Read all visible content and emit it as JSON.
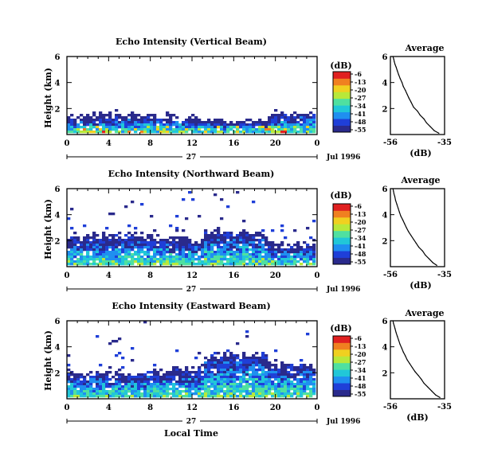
{
  "figure": {
    "x_axis_title": "Local Time",
    "date_label": "Jul 1996",
    "day_label": "27"
  },
  "colorbar": {
    "unit": "(dB)",
    "ticks": [
      "-6",
      "-13",
      "-20",
      "-27",
      "-34",
      "-41",
      "-48",
      "-55"
    ],
    "colors": [
      "#2a2a8c",
      "#1f3fd8",
      "#1f8ff0",
      "#21c7d8",
      "#4fe0a0",
      "#b8e83a",
      "#f0d020",
      "#f08020",
      "#e02020"
    ]
  },
  "chart_data": [
    {
      "type": "heatmap",
      "title": "Echo Intensity (Vertical Beam)",
      "xlabel": "",
      "ylabel": "Height (km)",
      "xlim": [
        0,
        24
      ],
      "ylim": [
        0,
        6
      ],
      "xticks": [
        "0",
        "4",
        "8",
        "12",
        "16",
        "20",
        "0"
      ],
      "yticks": [
        "2",
        "4",
        "6"
      ],
      "profile": {
        "i_hi": 20,
        "shift": 1.0,
        "sparse": 0.0,
        "seed": 7
      }
    },
    {
      "type": "line",
      "title": "Average",
      "xlabel": "(dB)",
      "ylabel": "",
      "xlim": [
        -56,
        -35
      ],
      "ylim": [
        0,
        6
      ],
      "xticks": [
        "-56",
        "-35"
      ],
      "yticks": [
        "2",
        "4",
        "6"
      ],
      "x": [
        -37.2,
        -39,
        -40.5,
        -42,
        -43,
        -44.5,
        -45.5,
        -47,
        -48,
        -48.8,
        -49.5,
        -50.2,
        -51,
        -51.5,
        -52.2,
        -52.8,
        -53.3,
        -53.8,
        -54.2,
        -54.5,
        -54.7,
        -55
      ],
      "y": [
        0.1,
        0.3,
        0.6,
        0.9,
        1.2,
        1.5,
        1.8,
        2.1,
        2.5,
        2.8,
        3.1,
        3.4,
        3.7,
        4.0,
        4.3,
        4.6,
        4.9,
        5.2,
        5.4,
        5.6,
        5.8,
        6.0
      ]
    },
    {
      "type": "heatmap",
      "title": "Echo Intensity (Northward Beam)",
      "xlabel": "",
      "ylabel": "Height (km)",
      "xlim": [
        0,
        24
      ],
      "ylim": [
        0,
        6
      ],
      "xticks": [
        "0",
        "4",
        "8",
        "12",
        "16",
        "20",
        "0"
      ],
      "yticks": [
        "2",
        "4",
        "6"
      ],
      "profile": {
        "i_hi": 14,
        "shift": 1.6,
        "sparse": 0.015,
        "seed": 13
      }
    },
    {
      "type": "line",
      "title": "Average",
      "xlabel": "(dB)",
      "ylabel": "",
      "xlim": [
        -56,
        -35
      ],
      "ylim": [
        0,
        6
      ],
      "xticks": [
        "-56",
        "-35"
      ],
      "yticks": [
        "2",
        "4",
        "6"
      ],
      "x": [
        -38,
        -39.5,
        -41,
        -42.5,
        -43.5,
        -45,
        -46,
        -47,
        -48,
        -49,
        -49.8,
        -50.5,
        -51.2,
        -52,
        -52.5,
        -53,
        -53.5,
        -54,
        -54.3,
        -54.6,
        -54.8,
        -55
      ],
      "y": [
        0.1,
        0.3,
        0.6,
        0.9,
        1.2,
        1.5,
        1.8,
        2.1,
        2.4,
        2.7,
        3.0,
        3.3,
        3.6,
        3.9,
        4.2,
        4.5,
        4.8,
        5.1,
        5.4,
        5.6,
        5.8,
        6.0
      ]
    },
    {
      "type": "heatmap",
      "title": "Echo Intensity (Eastward Beam)",
      "xlabel": "Local Time",
      "ylabel": "Height (km)",
      "xlim": [
        0,
        24
      ],
      "ylim": [
        0,
        6
      ],
      "xticks": [
        "0",
        "4",
        "8",
        "12",
        "16",
        "20",
        "0"
      ],
      "yticks": [
        "2",
        "4",
        "6"
      ],
      "profile": {
        "i_hi": 12,
        "shift": 1.9,
        "sparse": 0.012,
        "seed": 29
      }
    },
    {
      "type": "line",
      "title": "Average",
      "xlabel": "(dB)",
      "ylabel": "",
      "xlim": [
        -56,
        -35
      ],
      "ylim": [
        0,
        6
      ],
      "xticks": [
        "-56",
        "-35"
      ],
      "yticks": [
        "2",
        "4",
        "6"
      ],
      "x": [
        -36.8,
        -38.5,
        -40,
        -41.5,
        -43,
        -44,
        -45.2,
        -46.5,
        -47.5,
        -48.5,
        -49.5,
        -50.2,
        -51,
        -51.6,
        -52.3,
        -52.8,
        -53.3,
        -53.8,
        -54.2,
        -54.5,
        -54.8,
        -55
      ],
      "y": [
        0.1,
        0.3,
        0.6,
        0.9,
        1.2,
        1.5,
        1.8,
        2.1,
        2.4,
        2.7,
        3.0,
        3.3,
        3.6,
        3.9,
        4.2,
        4.5,
        4.8,
        5.1,
        5.4,
        5.6,
        5.8,
        6.0
      ]
    }
  ]
}
